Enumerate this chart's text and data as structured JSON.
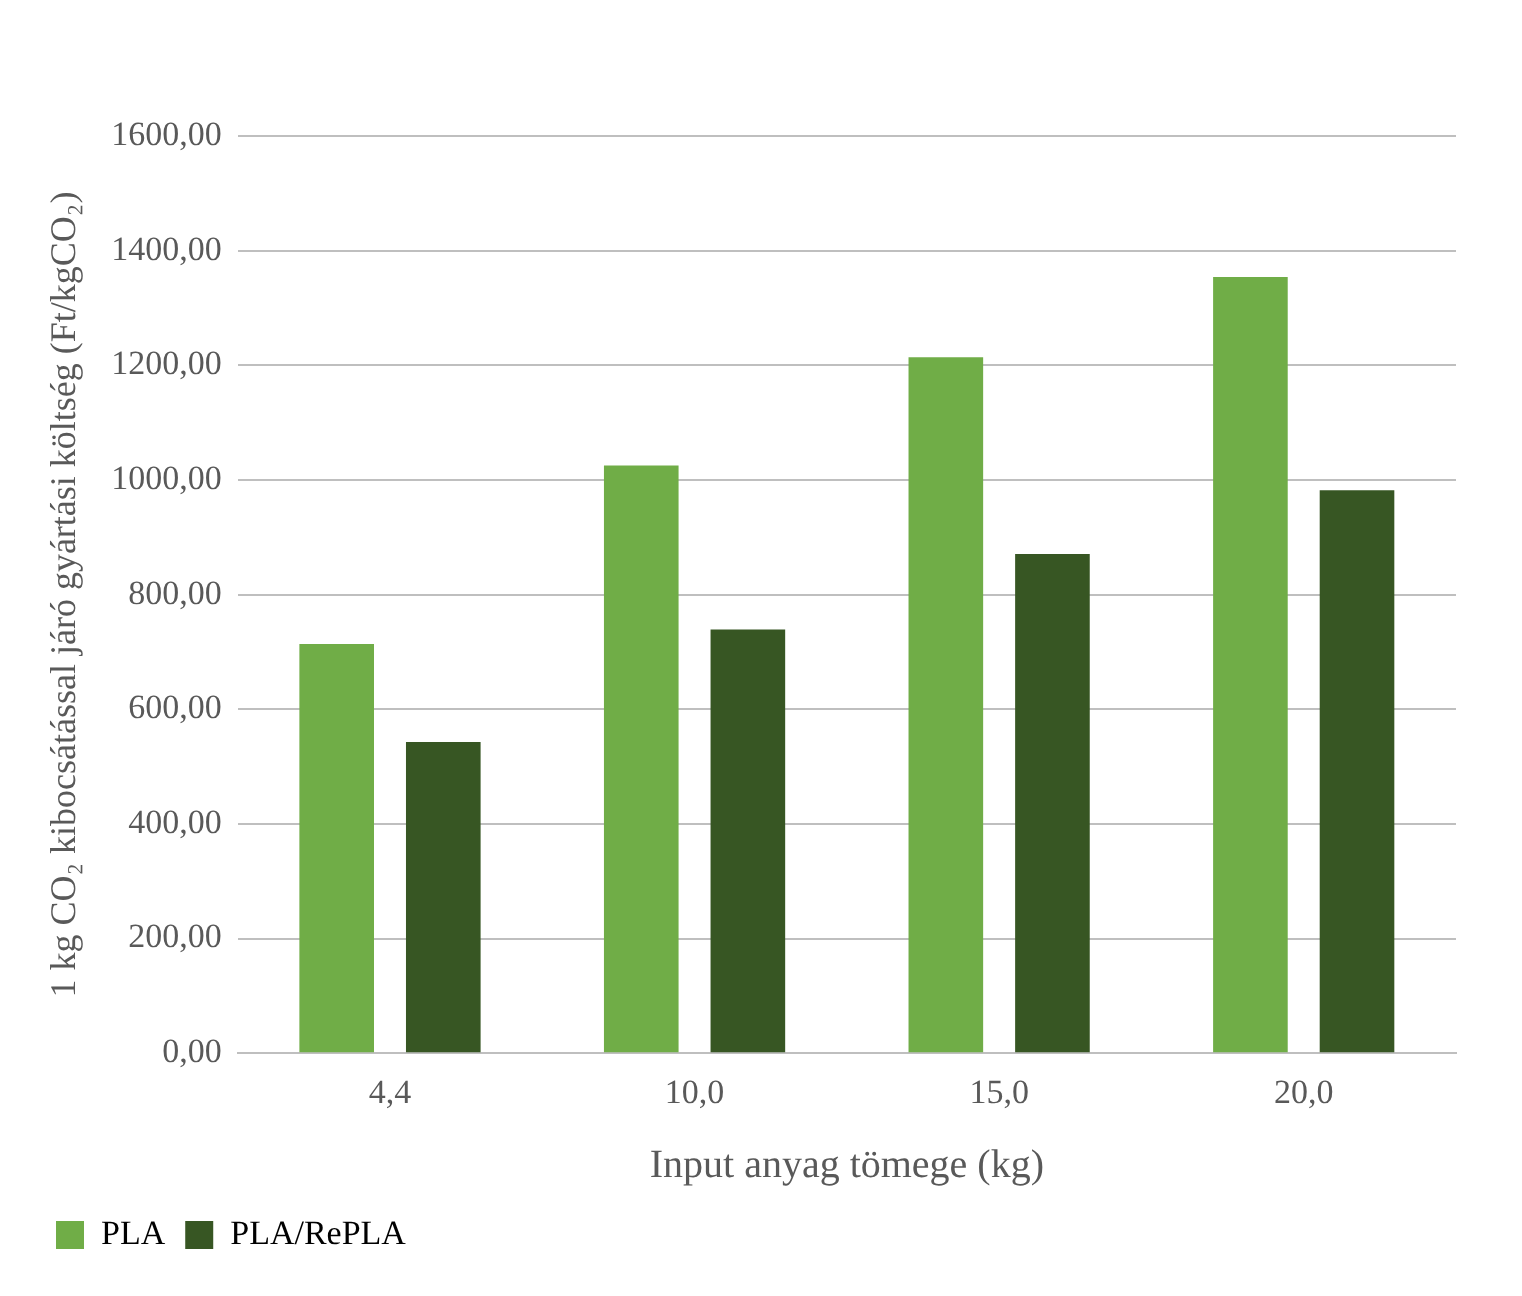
{
  "chart_data": {
    "type": "bar",
    "xlabel": "Input anyag tömege (kg)",
    "ylabel": "1 kg CO₂ kibocsátással járó gyártási költség (Ft/kgCO₂)",
    "categories": [
      "4,4",
      "10,0",
      "15,0",
      "20,0"
    ],
    "series": [
      {
        "name": "PLA",
        "color": "#70ad47",
        "values": [
          714,
          1025,
          1214,
          1354
        ]
      },
      {
        "name": "PLA/RePLA",
        "color": "#375623",
        "values": [
          543,
          739,
          871,
          982
        ]
      }
    ],
    "ylim": [
      0,
      1600
    ],
    "yticks": [
      {
        "value": 0,
        "label": "0,00"
      },
      {
        "value": 200,
        "label": "200,00"
      },
      {
        "value": 400,
        "label": "400,00"
      },
      {
        "value": 600,
        "label": "600,00"
      },
      {
        "value": 800,
        "label": "800,00"
      },
      {
        "value": 1000,
        "label": "1000,00"
      },
      {
        "value": 1200,
        "label": "1200,00"
      },
      {
        "value": 1400,
        "label": "1400,00"
      },
      {
        "value": 1600,
        "label": "1600,00"
      }
    ],
    "grid": "y",
    "legend": "bottom left"
  }
}
